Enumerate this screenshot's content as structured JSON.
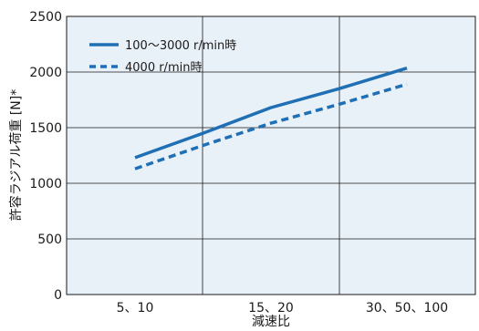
{
  "chart_data": {
    "type": "line",
    "xlabel": "減速比",
    "ylabel": "許容ラジアル荷重 [N]*",
    "categories": [
      "5、10",
      "15、20",
      "30、50、100"
    ],
    "ylim": [
      0,
      2500
    ],
    "yticks": [
      "0",
      "500",
      "1000",
      "1500",
      "2000",
      "2500"
    ],
    "grid": true,
    "legend_position": "top-left",
    "plot_background": "#e8f0f8",
    "series": [
      {
        "name": "100～3000 r/min時",
        "style": "solid",
        "color": "#1f6fb5",
        "points": [
          [
            0.0,
            1230
          ],
          [
            0.5,
            1450
          ],
          [
            1.0,
            1680
          ],
          [
            1.5,
            1850
          ],
          [
            2.0,
            2035
          ]
        ]
      },
      {
        "name": "4000 r/min時",
        "style": "dashed",
        "color": "#1f6fb5",
        "points": [
          [
            0.0,
            1130
          ],
          [
            0.5,
            1340
          ],
          [
            1.0,
            1540
          ],
          [
            1.5,
            1710
          ],
          [
            2.0,
            1890
          ]
        ]
      }
    ]
  }
}
